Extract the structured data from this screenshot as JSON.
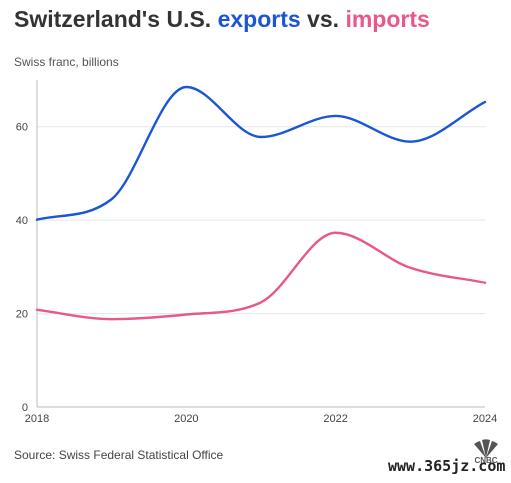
{
  "header": {
    "title_prefix": "Switzerland's U.S. ",
    "title_exports": "exports",
    "title_mid": " vs. ",
    "title_imports": "imports",
    "subtitle": "Swiss franc, billions"
  },
  "footer": {
    "source": "Source: Swiss Federal Statistical Office",
    "watermark": "www.365jz.com",
    "logo_text": "CNBC"
  },
  "colors": {
    "exports": "#1a56d6",
    "imports": "#e8588c",
    "grid": "#e6e6e6",
    "axis": "#bbbbbb"
  },
  "chart_data": {
    "type": "line",
    "title": "Switzerland's U.S. exports vs. imports",
    "ylabel": "Swiss franc, billions",
    "xlabel": "",
    "x": [
      2018,
      2019,
      2020,
      2021,
      2022,
      2023,
      2024
    ],
    "xticks": [
      "2018",
      "2020",
      "2022",
      "2024"
    ],
    "yticks": [
      "0",
      "20",
      "40",
      "60"
    ],
    "xlim": [
      2018,
      2024
    ],
    "ylim": [
      0,
      70
    ],
    "grid": true,
    "series": [
      {
        "name": "exports",
        "color": "#1a56d6",
        "values": [
          40.1,
          44.5,
          68.5,
          57.8,
          62.3,
          56.8,
          65.3
        ]
      },
      {
        "name": "imports",
        "color": "#e8588c",
        "values": [
          20.8,
          18.8,
          19.8,
          22.4,
          37.3,
          29.8,
          26.6
        ]
      }
    ]
  }
}
